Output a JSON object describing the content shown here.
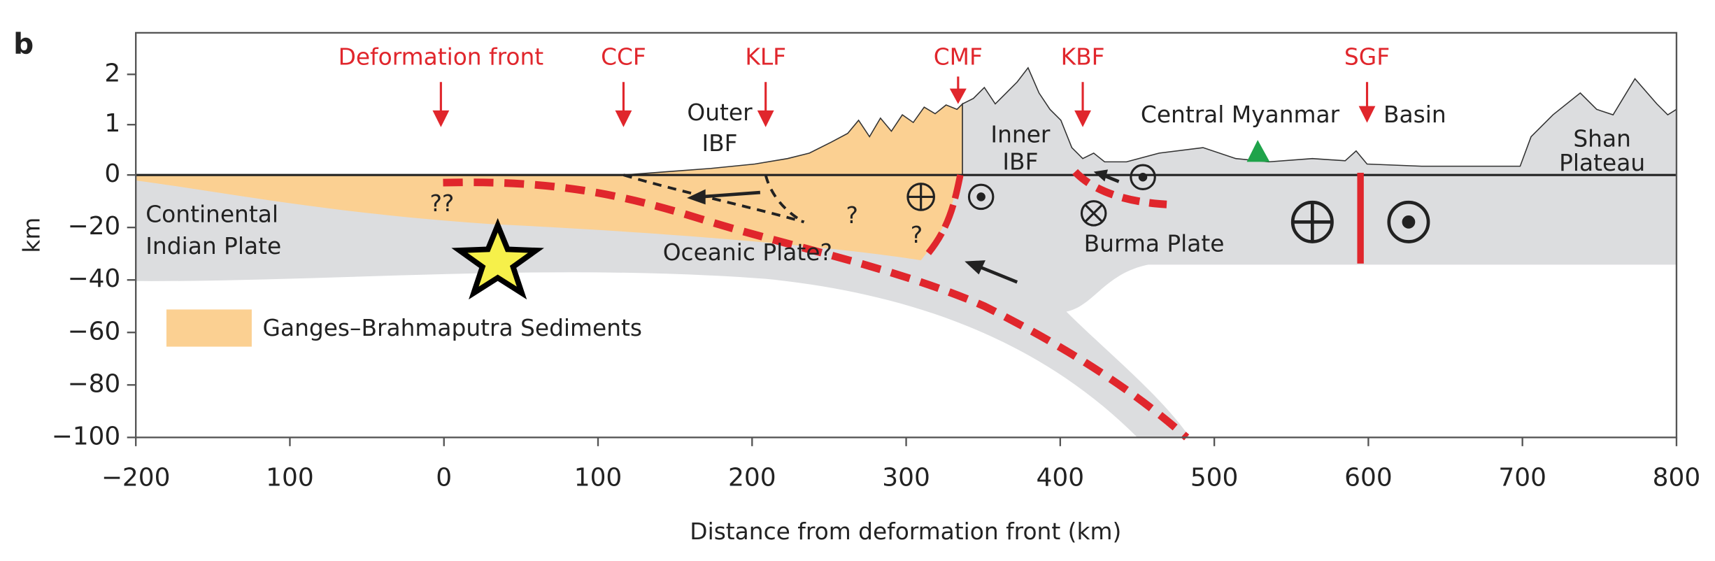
{
  "panel_label": "b",
  "y_axis": {
    "label": "km",
    "ticks": [
      2,
      1,
      0,
      {
        "value": -20,
        "label": "−20"
      },
      {
        "value": -40,
        "label": "−40"
      },
      {
        "value": -60,
        "label": "−60"
      },
      {
        "value": -80,
        "label": "−80"
      },
      {
        "value": -100,
        "label": "−100"
      }
    ]
  },
  "x_axis": {
    "label": "Distance from deformation front (km)",
    "lim": [
      {
        "value": -200,
        "label": "−200"
      },
      800
    ],
    "ticks": [
      {
        "value": -200,
        "label": "−200"
      },
      100,
      0,
      100,
      200,
      300,
      400,
      500,
      600,
      700,
      800
    ]
  },
  "faults": [
    "Deformation front",
    "CCF",
    "KLF",
    "CMF",
    "KBF",
    "SGF"
  ],
  "annotations": {
    "outer_ibf": [
      "Outer",
      "IBF"
    ],
    "inner_ibf": [
      "Inner",
      "IBF"
    ],
    "central_myanmar": "Central Myanmar",
    "basin": "Basin",
    "shan_plateau": [
      "Shan",
      "Plateau"
    ],
    "double_q": "??",
    "q1": "?",
    "q2": "?",
    "continental": [
      "Continental",
      "Indian Plate"
    ],
    "oceanic": "Oceanic Plate?",
    "burma": "Burma Plate"
  },
  "legend": {
    "label": "Ganges–Brahmaputra Sediments"
  }
}
